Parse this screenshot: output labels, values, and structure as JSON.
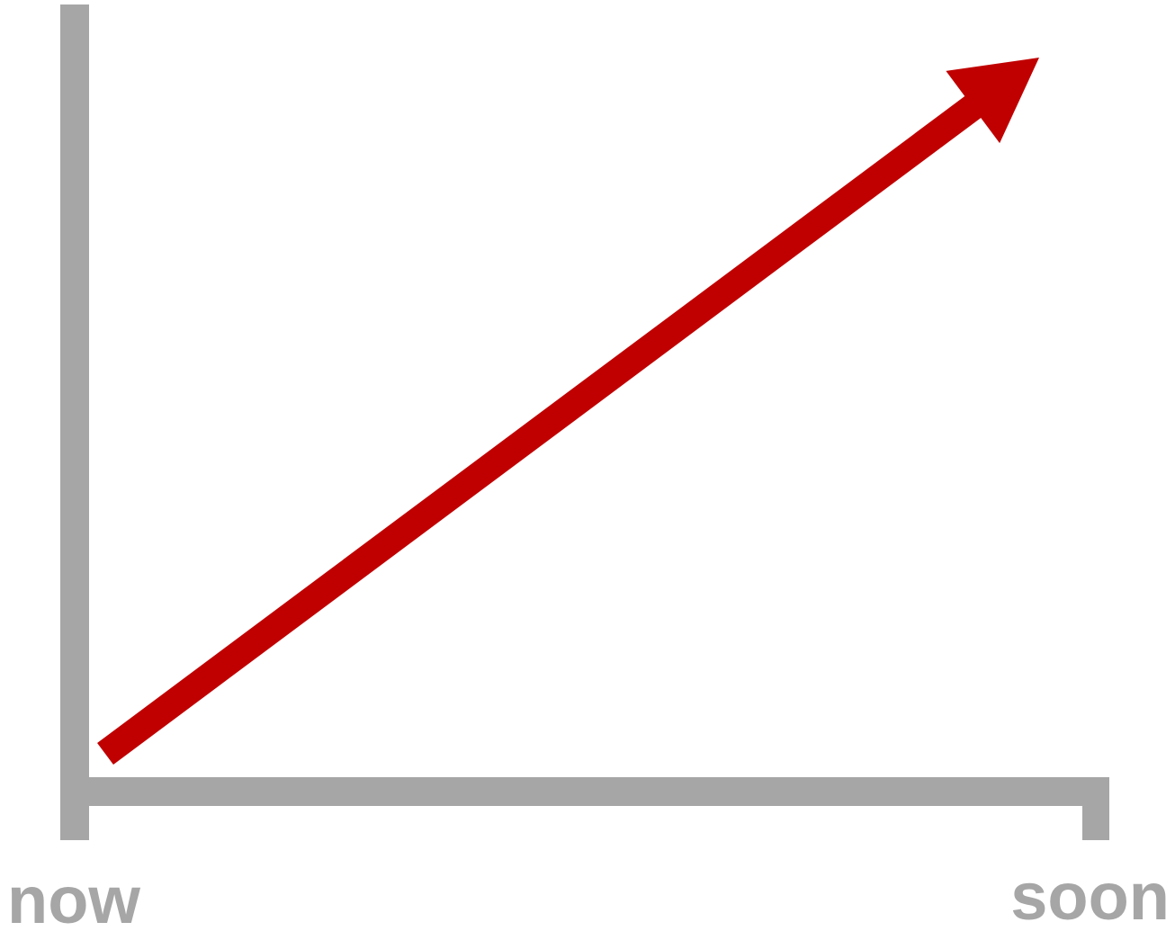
{
  "chart_data": {
    "type": "line",
    "title": "",
    "xlabel": "",
    "ylabel": "",
    "x_tick_labels": [
      "now",
      "soon"
    ],
    "x": [
      "now",
      "soon"
    ],
    "series": [
      {
        "values": [
          0,
          1
        ]
      }
    ],
    "ylim": [
      0,
      1
    ],
    "grid": false,
    "arrow_end": true
  },
  "colors": {
    "axis": "#a6a6a6",
    "series": "#c00000",
    "label": "#a6a6a6"
  }
}
